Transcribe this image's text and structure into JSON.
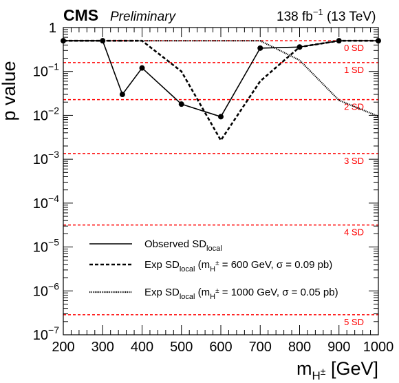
{
  "header": {
    "experiment": "CMS",
    "status": "Preliminary",
    "lumi": "138",
    "lumi_unit": "fb",
    "lumi_exp": "−1",
    "energy": "(13 TeV)"
  },
  "chart_data": {
    "type": "line",
    "title": "",
    "ylabel": "p value",
    "xlabel": {
      "main": "m",
      "sub": "H",
      "sup": "±",
      "unit": "[GeV]"
    },
    "xlim": [
      200,
      1000
    ],
    "ylim": [
      1e-07,
      1
    ],
    "yscale": "log",
    "grid": false,
    "legend_position": "bottom-center",
    "x_ticks": [
      "200",
      "300",
      "400",
      "500",
      "600",
      "700",
      "800",
      "900",
      "1000"
    ],
    "y_ticks": [
      {
        "value": 1,
        "label": "1"
      },
      {
        "value": 0.1,
        "base": "10",
        "exp": "−1"
      },
      {
        "value": 0.01,
        "base": "10",
        "exp": "−2"
      },
      {
        "value": 0.001,
        "base": "10",
        "exp": "−3"
      },
      {
        "value": 0.0001,
        "base": "10",
        "exp": "−4"
      },
      {
        "value": 1e-05,
        "base": "10",
        "exp": "−5"
      },
      {
        "value": 1e-06,
        "base": "10",
        "exp": "−6"
      },
      {
        "value": 1e-07,
        "base": "10",
        "exp": "−7"
      }
    ],
    "sd_lines": [
      {
        "label": "0 SD",
        "p": 0.5
      },
      {
        "label": "1 SD",
        "p": 0.1587
      },
      {
        "label": "2 SD",
        "p": 0.02275
      },
      {
        "label": "3 SD",
        "p": 0.00135
      },
      {
        "label": "4 SD",
        "p": 3.17e-05
      },
      {
        "label": "5 SD",
        "p": 2.87e-07
      }
    ],
    "sd_color": "#ff0000",
    "series": [
      {
        "style": "solid",
        "markers": true,
        "points": [
          [
            200,
            0.5
          ],
          [
            300,
            0.5
          ],
          [
            350,
            0.03
          ],
          [
            400,
            0.12
          ],
          [
            500,
            0.018
          ],
          [
            600,
            0.0093
          ],
          [
            700,
            0.34
          ],
          [
            800,
            0.36
          ],
          [
            900,
            0.5
          ],
          [
            1000,
            0.5
          ]
        ]
      },
      {
        "style": "dashed",
        "markers": false,
        "points": [
          [
            200,
            0.5
          ],
          [
            400,
            0.5
          ],
          [
            500,
            0.1
          ],
          [
            600,
            0.0027
          ],
          [
            700,
            0.06
          ],
          [
            800,
            0.36
          ],
          [
            900,
            0.5
          ],
          [
            1000,
            0.5
          ]
        ]
      },
      {
        "style": "dotted",
        "markers": false,
        "points": [
          [
            200,
            0.5
          ],
          [
            300,
            0.5
          ],
          [
            600,
            0.5
          ],
          [
            700,
            0.5
          ],
          [
            800,
            0.18
          ],
          [
            900,
            0.022
          ],
          [
            1000,
            0.0095
          ]
        ]
      }
    ],
    "legend": [
      {
        "style": "solid",
        "text": "Observed SD",
        "sub": "local",
        "rest": ""
      },
      {
        "style": "dashed",
        "text": "Exp SD",
        "sub": "local",
        "paren_open": "(m",
        "msub": "H",
        "msup": "±",
        "rest": " = 600 GeV, σ = 0.09 pb)"
      },
      {
        "style": "dotted",
        "text": "Exp SD",
        "sub": "local",
        "paren_open": "(m",
        "msub": "H",
        "msup": "±",
        "rest": " = 1000 GeV, σ = 0.05 pb)"
      }
    ]
  }
}
